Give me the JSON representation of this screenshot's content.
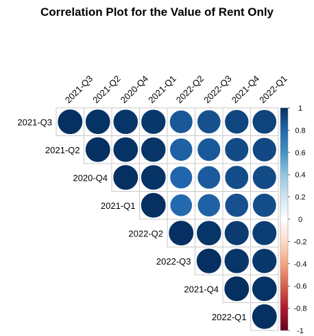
{
  "chart_data": {
    "type": "heatmap",
    "title": "Correlation Plot for the Value of Rent Only",
    "variables": [
      "2021-Q3",
      "2021-Q2",
      "2020-Q4",
      "2021-Q1",
      "2022-Q2",
      "2022-Q3",
      "2021-Q4",
      "2022-Q1"
    ],
    "matrix": [
      [
        1.0,
        0.99,
        0.98,
        0.97,
        0.85,
        0.88,
        0.92,
        0.93
      ],
      [
        0.99,
        1.0,
        0.99,
        0.98,
        0.82,
        0.85,
        0.9,
        0.91
      ],
      [
        0.98,
        0.99,
        1.0,
        0.99,
        0.8,
        0.84,
        0.89,
        0.9
      ],
      [
        0.97,
        0.98,
        0.99,
        1.0,
        0.78,
        0.82,
        0.88,
        0.89
      ],
      [
        0.85,
        0.82,
        0.8,
        0.78,
        1.0,
        0.98,
        0.96,
        0.95
      ],
      [
        0.88,
        0.85,
        0.84,
        0.82,
        0.98,
        1.0,
        0.98,
        0.97
      ],
      [
        0.92,
        0.9,
        0.89,
        0.88,
        0.96,
        0.98,
        1.0,
        0.99
      ],
      [
        0.93,
        0.91,
        0.9,
        0.89,
        0.95,
        0.97,
        0.99,
        1.0
      ]
    ],
    "display": "upper triangle, circles",
    "colorbar": {
      "ticks": [
        "1",
        "0.8",
        "0.6",
        "0.4",
        "0.2",
        "0",
        "-0.2",
        "-0.4",
        "-0.6",
        "-0.8",
        "-1"
      ],
      "range": [
        -1,
        1
      ],
      "palette": [
        "#67001F",
        "#B2182B",
        "#D6604D",
        "#F4A582",
        "#FDDBC7",
        "#FFFFFF",
        "#D1E5F0",
        "#92C5DE",
        "#4393C3",
        "#2166AC",
        "#053061"
      ]
    }
  }
}
